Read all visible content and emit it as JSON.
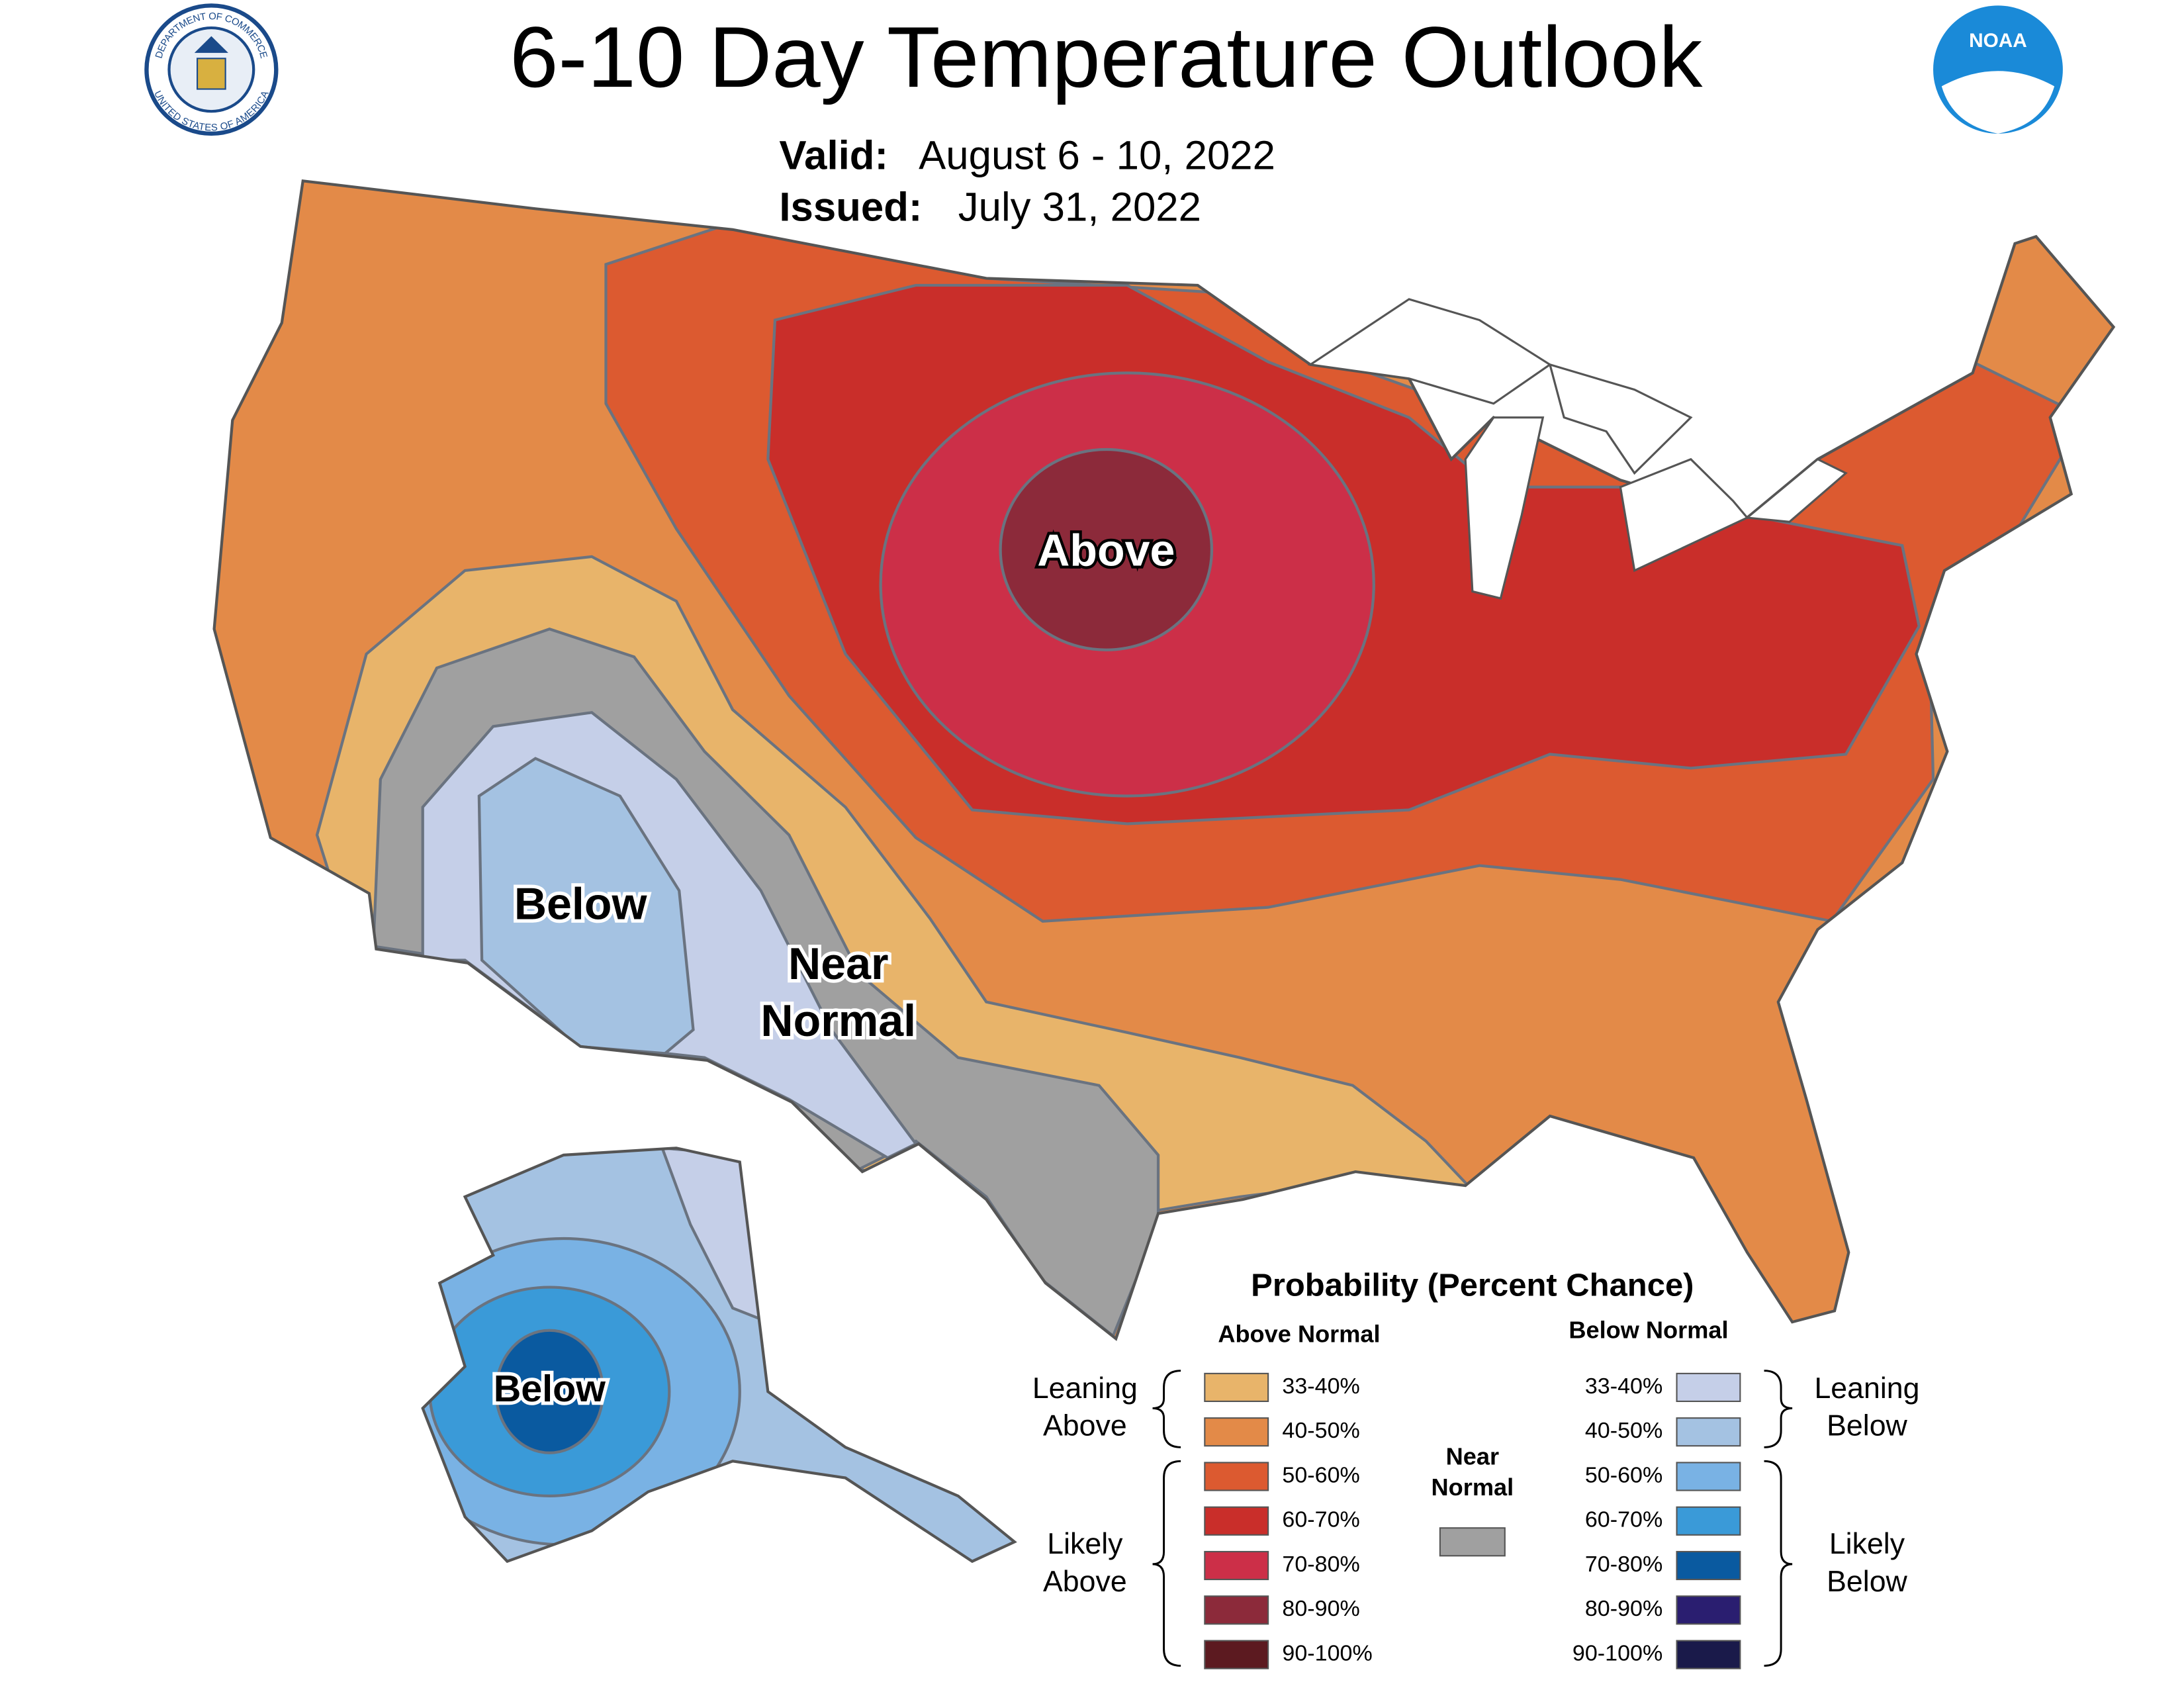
{
  "header": {
    "title": "6-10 Day Temperature Outlook",
    "valid_label": "Valid:",
    "valid_date": "August 6 - 10, 2022",
    "issued_label": "Issued:",
    "issued_date": "July 31, 2022"
  },
  "logos": {
    "commerce_top": "DEPARTMENT OF COMMERCE",
    "commerce_bottom": "UNITED STATES OF AMERICA",
    "noaa": "NOAA"
  },
  "map_labels": {
    "above": "Above",
    "below": "Below",
    "near_normal": [
      "Near",
      "Normal"
    ],
    "alaska_below": "Below"
  },
  "legend": {
    "title": "Probability (Percent Chance)",
    "above_header": "Above Normal",
    "below_header": "Below Normal",
    "above_items": [
      {
        "label": "33-40%",
        "color": "#e8b46a"
      },
      {
        "label": "40-50%",
        "color": "#e38a48"
      },
      {
        "label": "50-60%",
        "color": "#dc5a30"
      },
      {
        "label": "60-70%",
        "color": "#c92e2a"
      },
      {
        "label": "70-80%",
        "color": "#cc2f48"
      },
      {
        "label": "80-90%",
        "color": "#8c2a3a"
      },
      {
        "label": "90-100%",
        "color": "#5c1a20"
      }
    ],
    "below_items": [
      {
        "label": "33-40%",
        "color": "#c5cfe8"
      },
      {
        "label": "40-50%",
        "color": "#a4c2e2"
      },
      {
        "label": "50-60%",
        "color": "#79b2e4"
      },
      {
        "label": "60-70%",
        "color": "#3a9ad8"
      },
      {
        "label": "70-80%",
        "color": "#0a5aa0"
      },
      {
        "label": "80-90%",
        "color": "#2a1e70"
      },
      {
        "label": "90-100%",
        "color": "#1a1a4a"
      }
    ],
    "near_normal": {
      "label": [
        "Near",
        "Normal"
      ],
      "color": "#a0a0a0"
    },
    "leaning_above": [
      "Leaning",
      "Above"
    ],
    "likely_above": [
      "Likely",
      "Above"
    ],
    "leaning_below": [
      "Leaning",
      "Below"
    ],
    "likely_below": [
      "Likely",
      "Below"
    ]
  }
}
